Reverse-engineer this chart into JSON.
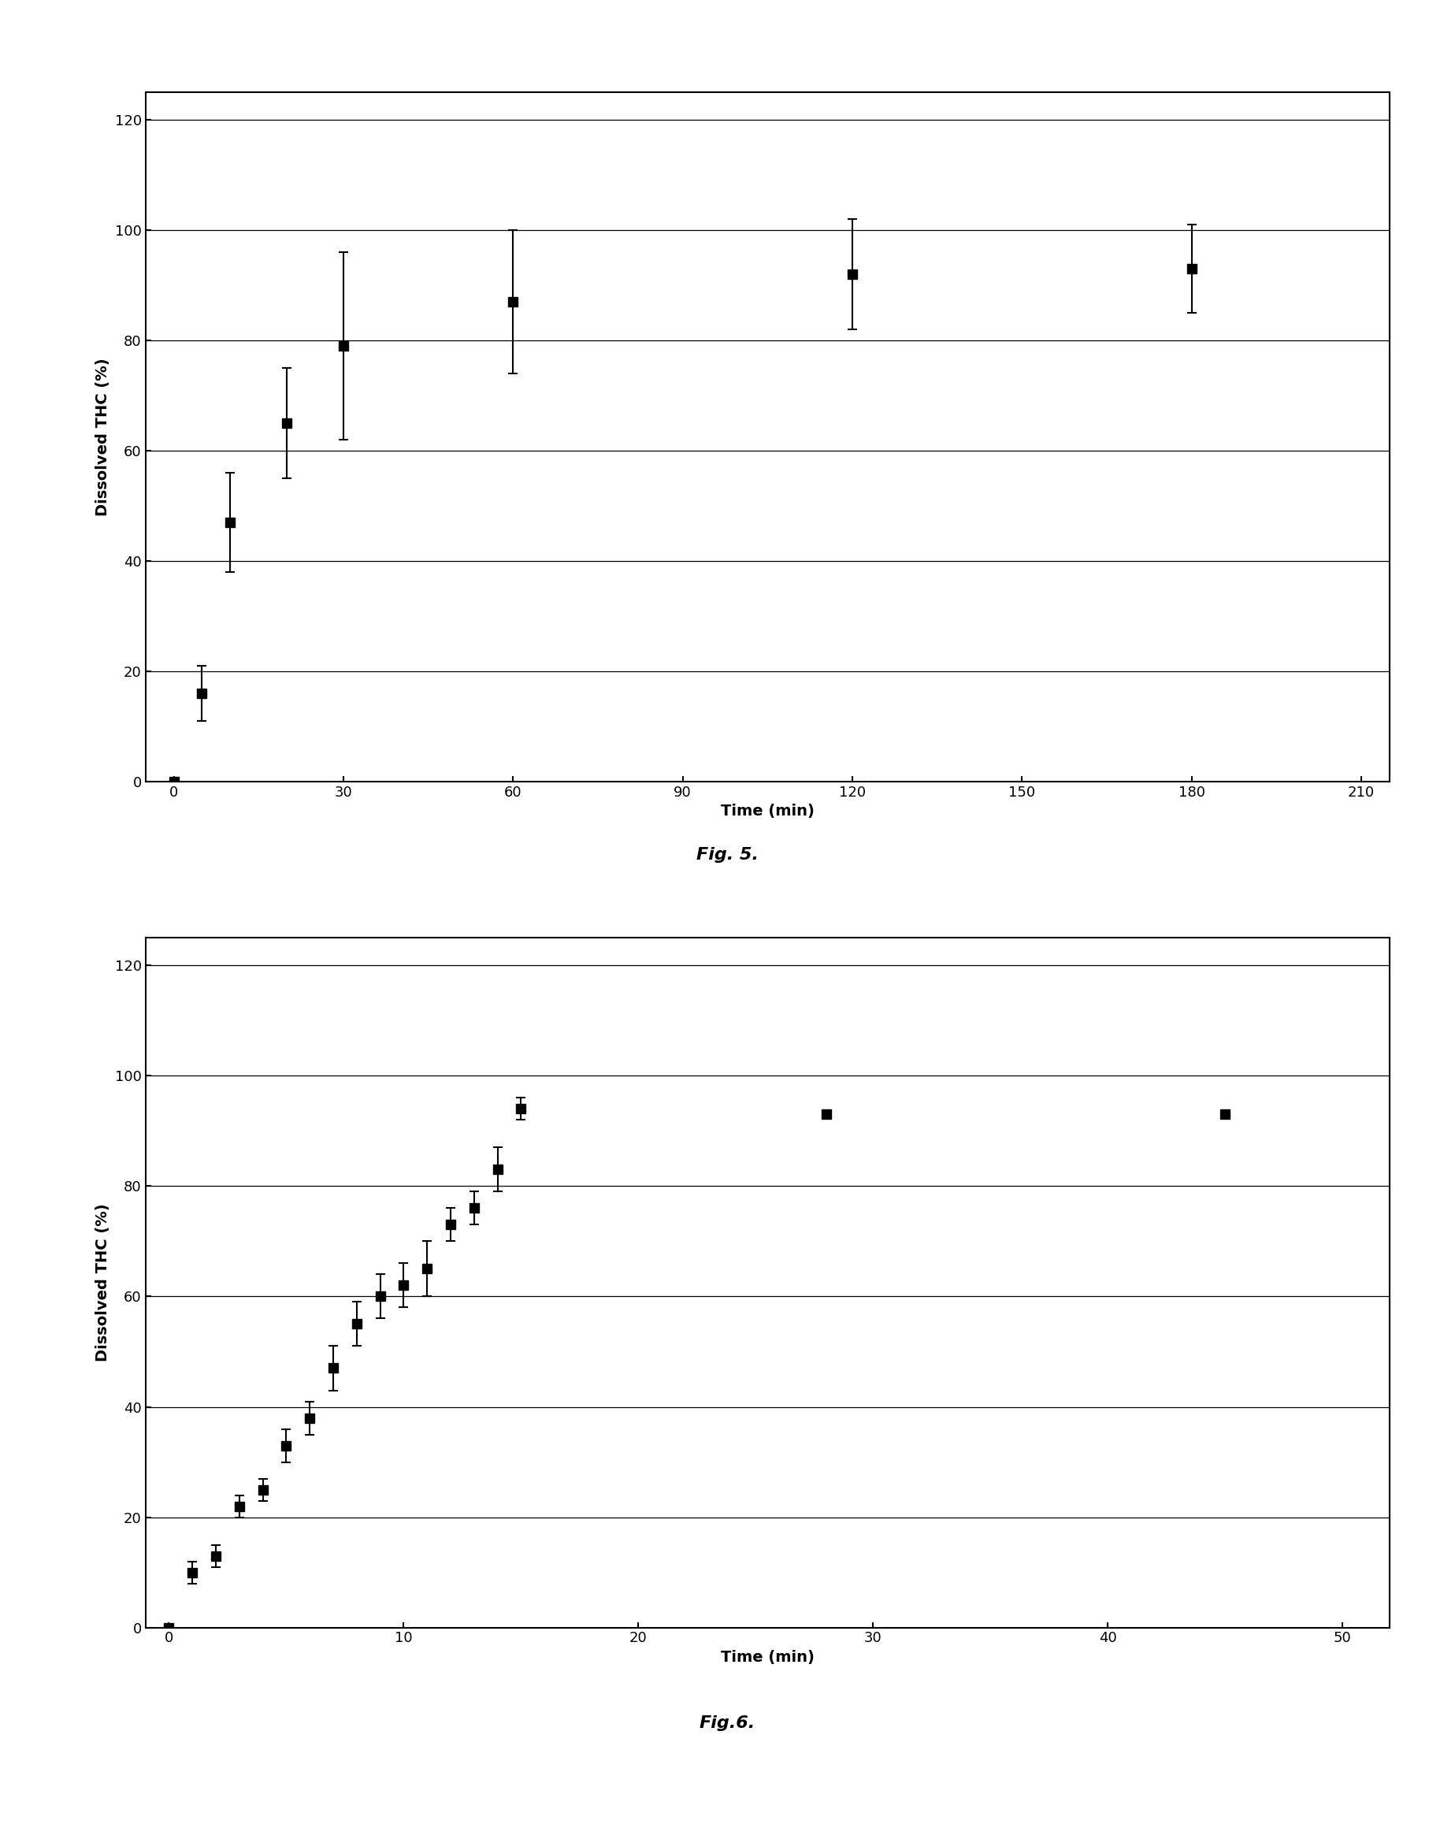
{
  "fig5": {
    "caption": "Fig. 5.",
    "xlabel": "Time (min)",
    "ylabel": "Dissolved THC (%)",
    "x": [
      0,
      5,
      10,
      20,
      30,
      60,
      120,
      180
    ],
    "y": [
      0,
      16,
      47,
      65,
      79,
      87,
      92,
      93
    ],
    "yerr_low": [
      0,
      5,
      9,
      10,
      17,
      13,
      10,
      8
    ],
    "yerr_high": [
      0,
      5,
      9,
      10,
      17,
      13,
      10,
      8
    ],
    "xlim": [
      -5,
      215
    ],
    "ylim": [
      0,
      125
    ],
    "xticks": [
      0,
      30,
      60,
      90,
      120,
      150,
      180,
      210
    ],
    "yticks": [
      0,
      20,
      40,
      60,
      80,
      100,
      120
    ]
  },
  "fig6": {
    "caption": "Fig.6.",
    "xlabel": "Time (min)",
    "ylabel": "Dissolved THC (%)",
    "x": [
      0,
      1,
      2,
      3,
      4,
      5,
      6,
      7,
      8,
      9,
      10,
      11,
      12,
      13,
      14,
      15,
      28,
      45
    ],
    "y": [
      0,
      10,
      13,
      22,
      25,
      33,
      38,
      47,
      55,
      60,
      62,
      65,
      73,
      76,
      83,
      94,
      93,
      93
    ],
    "yerr_low": [
      0,
      2,
      2,
      2,
      2,
      3,
      3,
      4,
      4,
      4,
      4,
      5,
      3,
      3,
      4,
      2,
      0,
      0
    ],
    "yerr_high": [
      0,
      2,
      2,
      2,
      2,
      3,
      3,
      4,
      4,
      4,
      4,
      5,
      3,
      3,
      4,
      2,
      0,
      0
    ],
    "xlim": [
      -1,
      52
    ],
    "ylim": [
      0,
      125
    ],
    "xticks": [
      0,
      10,
      20,
      30,
      40,
      50
    ],
    "yticks": [
      0,
      20,
      40,
      60,
      80,
      100,
      120
    ]
  },
  "background_color": "#ffffff",
  "data_color": "#000000",
  "line_color": "#000000",
  "marker": "s",
  "markersize": 8,
  "linewidth": 1.8,
  "grid_linewidth": 0.9,
  "caption_fontsize": 16,
  "label_fontsize": 14,
  "tick_fontsize": 13
}
